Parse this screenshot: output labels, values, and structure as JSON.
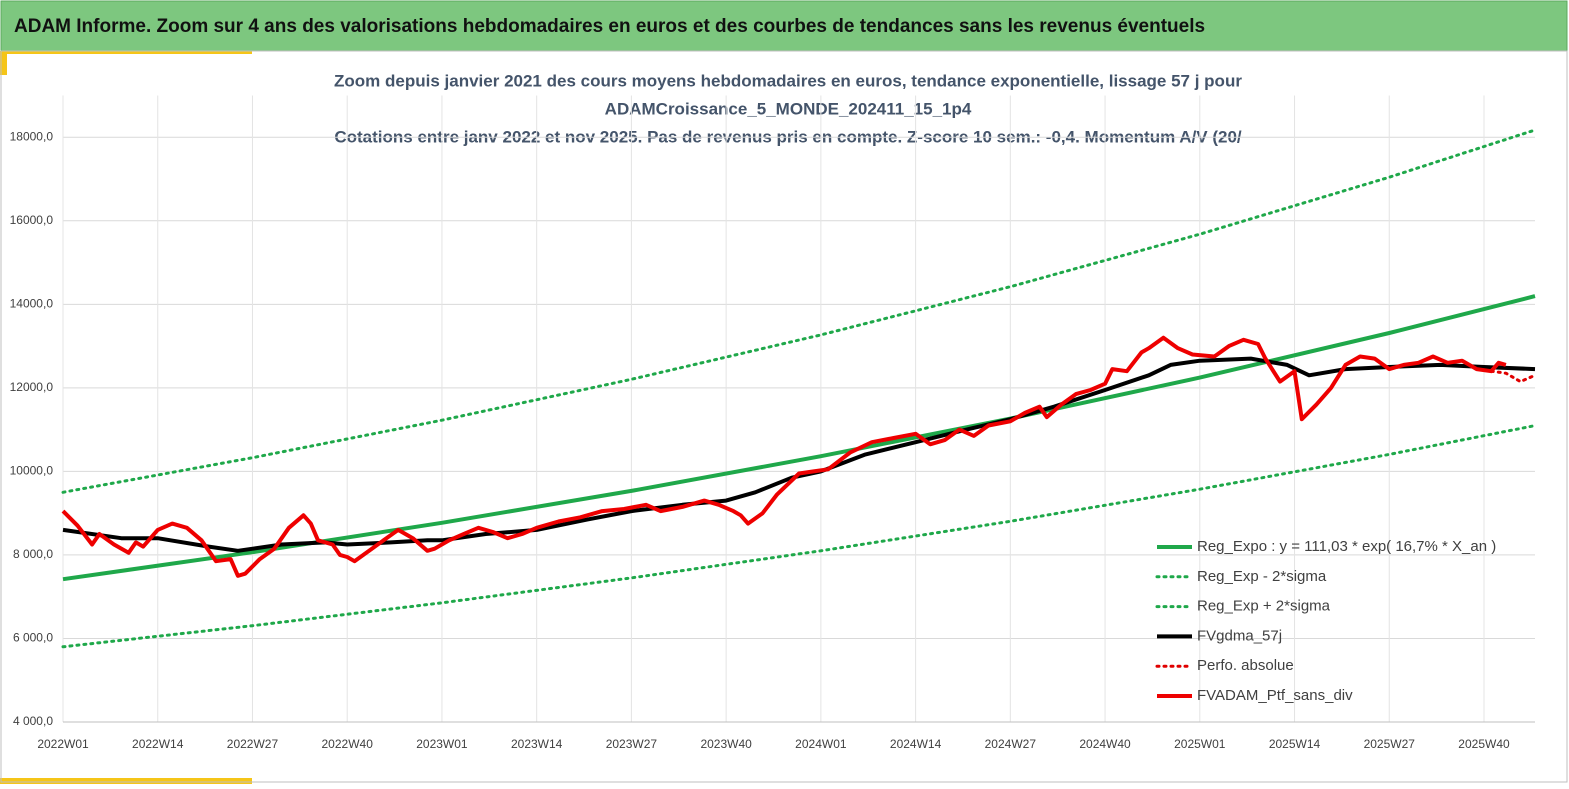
{
  "header": {
    "title": "ADAM Informe. Zoom sur 4 ans des valorisations hebdomadaires en euros et des courbes de tendances sans les revenus éventuels"
  },
  "chart_data": {
    "type": "line",
    "title": [
      "Zoom depuis janvier 2021 des cours moyens hebdomadaires  en euros, tendance exponentielle, lissage 57 j pour",
      "ADAMCroissance_5_MONDE_202411_15_1p4",
      "Cotations entre janv 2022 et nov 2025. Pas de revenus pris en compte. Z-score 10 sem.: -0,4. Momentum A/V (20/"
    ],
    "xlim": [
      0,
      202
    ],
    "xticks": [
      {
        "value": 0,
        "label": "2022W01"
      },
      {
        "value": 13,
        "label": "2022W14"
      },
      {
        "value": 26,
        "label": "2022W27"
      },
      {
        "value": 39,
        "label": "2022W40"
      },
      {
        "value": 52,
        "label": "2023W01"
      },
      {
        "value": 65,
        "label": "2023W14"
      },
      {
        "value": 78,
        "label": "2023W27"
      },
      {
        "value": 91,
        "label": "2023W40"
      },
      {
        "value": 104,
        "label": "2024W01"
      },
      {
        "value": 117,
        "label": "2024W14"
      },
      {
        "value": 130,
        "label": "2024W27"
      },
      {
        "value": 143,
        "label": "2024W40"
      },
      {
        "value": 156,
        "label": "2025W01"
      },
      {
        "value": 169,
        "label": "2025W14"
      },
      {
        "value": 182,
        "label": "2025W27"
      },
      {
        "value": 195,
        "label": "2025W40"
      }
    ],
    "ylim": [
      4000,
      19000
    ],
    "yticks": [
      {
        "value": 4000,
        "label": "4 000,0"
      },
      {
        "value": 6000,
        "label": "6 000,0"
      },
      {
        "value": 8000,
        "label": "8 000,0"
      },
      {
        "value": 10000,
        "label": "10000,0"
      },
      {
        "value": 12000,
        "label": "12000,0"
      },
      {
        "value": 14000,
        "label": "14000,0"
      },
      {
        "value": 16000,
        "label": "16000,0"
      },
      {
        "value": 18000,
        "label": "18000,0"
      }
    ],
    "grid": true,
    "legend": "bottom-right",
    "series": [
      {
        "name": "Reg_Expo : y = 111,03 * exp( 16,7% *  X_an )",
        "color": "#1fa84a",
        "dash": "solid",
        "width": 4,
        "x": [
          0,
          26,
          52,
          78,
          104,
          130,
          156,
          182,
          202
        ],
        "values": [
          7420,
          8066,
          8769,
          9533,
          10363,
          11265,
          12247,
          13313,
          14196
        ]
      },
      {
        "name": "Reg_Exp - 2*sigma",
        "color": "#1fa84a",
        "dash": "dotted",
        "width": 3,
        "x": [
          0,
          26,
          52,
          78,
          104,
          130,
          156,
          182,
          202
        ],
        "values": [
          5800,
          6305,
          6854,
          7451,
          8100,
          8806,
          9573,
          10406,
          11097
        ]
      },
      {
        "name": "Reg_Exp + 2*sigma",
        "color": "#1fa84a",
        "dash": "dotted",
        "width": 3,
        "x": [
          0,
          26,
          52,
          78,
          104,
          130,
          156,
          182,
          202
        ],
        "values": [
          9500,
          10327,
          11227,
          12205,
          13268,
          14423,
          15680,
          17045,
          18175
        ]
      },
      {
        "name": "FVgdma_57j",
        "color": "#000000",
        "dash": "solid",
        "width": 4,
        "x": [
          0,
          8,
          13,
          20,
          24,
          30,
          36,
          39,
          45,
          50,
          52,
          58,
          65,
          72,
          78,
          85,
          91,
          95,
          100,
          104,
          110,
          117,
          124,
          130,
          136,
          143,
          149,
          152,
          156,
          163,
          168,
          171,
          176,
          182,
          189,
          195,
          202
        ],
        "values": [
          8600,
          8400,
          8400,
          8200,
          8100,
          8250,
          8300,
          8250,
          8300,
          8350,
          8350,
          8500,
          8600,
          8850,
          9050,
          9200,
          9300,
          9500,
          9850,
          10000,
          10400,
          10700,
          11000,
          11250,
          11550,
          11950,
          12300,
          12550,
          12650,
          12700,
          12550,
          12300,
          12450,
          12500,
          12550,
          12500,
          12450
        ]
      },
      {
        "name": "Perfo. absolue",
        "color": "#e00000",
        "dash": "dotted",
        "width": 3,
        "x": [
          196,
          198,
          200,
          202
        ],
        "values": [
          12400,
          12350,
          12150,
          12300
        ]
      },
      {
        "name": "FVADAM_Ptf_sans_div",
        "color": "#ee0000",
        "dash": "solid",
        "width": 4,
        "x": [
          0,
          2,
          4,
          5,
          7,
          9,
          10,
          11,
          13,
          15,
          17,
          19,
          21,
          23,
          24,
          25,
          27,
          29,
          31,
          33,
          34,
          35,
          37,
          38,
          39,
          40,
          42,
          44,
          46,
          48,
          50,
          51,
          53,
          55,
          57,
          59,
          61,
          63,
          65,
          68,
          71,
          74,
          77,
          80,
          82,
          85,
          88,
          90,
          92,
          93,
          94,
          96,
          98,
          101,
          103,
          105,
          108,
          111,
          114,
          117,
          119,
          121,
          123,
          125,
          127,
          130,
          132,
          134,
          135,
          137,
          139,
          141,
          143,
          144,
          146,
          148,
          149,
          151,
          153,
          155,
          158,
          160,
          162,
          164,
          165,
          167,
          169,
          170,
          172,
          174,
          176,
          178,
          180,
          182,
          184,
          186,
          188,
          190,
          192,
          194,
          196,
          197,
          198
        ],
        "values": [
          9050,
          8700,
          8250,
          8500,
          8250,
          8050,
          8300,
          8200,
          8600,
          8750,
          8650,
          8350,
          7850,
          7900,
          7500,
          7550,
          7900,
          8150,
          8650,
          8950,
          8750,
          8350,
          8250,
          8000,
          7950,
          7850,
          8100,
          8350,
          8600,
          8400,
          8100,
          8150,
          8350,
          8500,
          8650,
          8550,
          8400,
          8500,
          8650,
          8800,
          8900,
          9050,
          9100,
          9200,
          9050,
          9150,
          9300,
          9200,
          9050,
          8950,
          8750,
          9000,
          9450,
          9950,
          10000,
          10050,
          10450,
          10700,
          10800,
          10900,
          10650,
          10750,
          11000,
          10850,
          11100,
          11200,
          11400,
          11550,
          11300,
          11600,
          11850,
          11950,
          12100,
          12450,
          12400,
          12850,
          12950,
          13200,
          12950,
          12800,
          12750,
          13000,
          13150,
          13050,
          12700,
          12150,
          12400,
          11250,
          11600,
          12000,
          12550,
          12750,
          12700,
          12450,
          12550,
          12600,
          12750,
          12600,
          12650,
          12450,
          12400,
          12600,
          12550
        ]
      }
    ]
  }
}
